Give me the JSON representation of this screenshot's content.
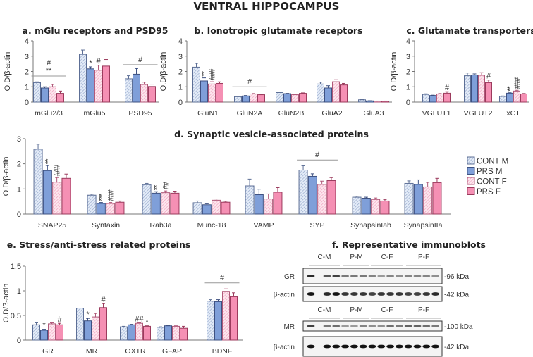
{
  "figure_title": "VENTRAL HIPPOCAMPUS",
  "legend": [
    "CONT M",
    "PRS M",
    "CONT F",
    "PRS F"
  ],
  "colors": {
    "cont_m_fill": "#e4ecf8",
    "cont_m_stripe": "#8fa3c8",
    "cont_m_border": "#5d6f96",
    "prs_m_fill": "#7f9fd9",
    "prs_m_border": "#3e5181",
    "cont_f_fill": "#fde6ee",
    "cont_f_stripe": "#ef9bba",
    "cont_f_border": "#b05a7a",
    "prs_f_fill": "#f590b4",
    "prs_f_border": "#9b3b5d",
    "axis": "#777777",
    "sig_line": "#999999"
  },
  "chart_data": [
    {
      "type": "bar",
      "title": "a. mGlu receptors and PSD95",
      "ylabel": "O.D/β-actin",
      "ylim": [
        0,
        4
      ],
      "yticks": [
        "0",
        "1",
        "2",
        "3",
        "4"
      ],
      "ytick_values": [
        0,
        1,
        2,
        3,
        4
      ],
      "categories": [
        "mGlu2/3",
        "mGlu5",
        "PSD95"
      ],
      "series": [
        {
          "name": "CONT M",
          "values": [
            1.27,
            3.12,
            1.52
          ],
          "errors": [
            0.05,
            0.28,
            0.2
          ]
        },
        {
          "name": "PRS M",
          "values": [
            0.92,
            2.17,
            1.82
          ],
          "errors": [
            0.08,
            0.13,
            0.37
          ]
        },
        {
          "name": "CONT F",
          "values": [
            1.0,
            2.08,
            1.15
          ],
          "errors": [
            0.15,
            0.33,
            0.15
          ]
        },
        {
          "name": "PRS F",
          "values": [
            0.57,
            2.35,
            1.02
          ],
          "errors": [
            0.15,
            0.43,
            0.15
          ]
        }
      ],
      "annotations": [
        {
          "category": 0,
          "line_at": 1.7,
          "text": "**",
          "text2": "#"
        },
        {
          "category": 1,
          "bar": 1,
          "text": "*"
        },
        {
          "category": 1,
          "bar": 2,
          "text": "#"
        },
        {
          "category": 2,
          "line_at": 2.44,
          "text": "#"
        }
      ]
    },
    {
      "type": "bar",
      "title": "b. Ionotropic glutamate receptors",
      "ylabel": "O.D/β-actin",
      "ylim": [
        0,
        4
      ],
      "yticks": [
        "0",
        "1",
        "2",
        "3",
        "4"
      ],
      "ytick_values": [
        0,
        1,
        2,
        3,
        4
      ],
      "categories": [
        "GluN1",
        "GluN2A",
        "GluN2B",
        "GluA2",
        "GluA3"
      ],
      "series": [
        {
          "name": "CONT M",
          "values": [
            2.28,
            0.35,
            0.62,
            1.18,
            0.15
          ],
          "errors": [
            0.25,
            0.03,
            0.02,
            0.12,
            0.02
          ]
        },
        {
          "name": "PRS M",
          "values": [
            1.38,
            0.4,
            0.55,
            0.92,
            0.08
          ],
          "errors": [
            0.2,
            0.03,
            0.02,
            0.15,
            0.01
          ]
        },
        {
          "name": "CONT F",
          "values": [
            1.18,
            0.53,
            0.48,
            1.33,
            0.06
          ],
          "errors": [
            0.15,
            0.03,
            0.02,
            0.13,
            0.01
          ]
        },
        {
          "name": "PRS F",
          "values": [
            1.22,
            0.48,
            0.57,
            1.12,
            0.06
          ],
          "errors": [
            0.1,
            0.03,
            0.03,
            0.1,
            0.01
          ]
        }
      ],
      "annotations": [
        {
          "category": 0,
          "bar": 1,
          "text": "**",
          "vertical": true
        },
        {
          "category": 0,
          "bar": 2,
          "text": "###",
          "vertical": true
        },
        {
          "category": 1,
          "line_at": 1.0,
          "text": "#"
        }
      ]
    },
    {
      "type": "bar",
      "title": "c. Glutamate transporters",
      "ylabel": "O.D/β-actin",
      "ylim": [
        0,
        4
      ],
      "yticks": [
        "0",
        "1",
        "2",
        "3",
        "4"
      ],
      "ytick_values": [
        0,
        1,
        2,
        3,
        4
      ],
      "categories": [
        "VGLUT1",
        "VGLUT2",
        "xCT"
      ],
      "series": [
        {
          "name": "CONT M",
          "values": [
            0.5,
            1.72,
            0.37
          ],
          "errors": [
            0.04,
            0.18,
            0.03
          ]
        },
        {
          "name": "PRS M",
          "values": [
            0.43,
            1.77,
            0.58
          ],
          "errors": [
            0.02,
            0.07,
            0.03
          ]
        },
        {
          "name": "CONT F",
          "values": [
            0.53,
            1.75,
            0.72
          ],
          "errors": [
            0.03,
            0.17,
            0.05
          ]
        },
        {
          "name": "PRS F",
          "values": [
            0.58,
            1.27,
            0.53
          ],
          "errors": [
            0.1,
            0.17,
            0.03
          ]
        }
      ],
      "annotations": [
        {
          "category": 0,
          "bar": 3,
          "text": "#"
        },
        {
          "category": 1,
          "bar": 3,
          "text": "#"
        },
        {
          "category": 2,
          "bar": 1,
          "text": "**",
          "vertical": true
        },
        {
          "category": 2,
          "bar": 2,
          "text": "###",
          "vertical": true
        }
      ]
    },
    {
      "type": "bar",
      "title": "d. Synaptic vesicle-associated proteins",
      "ylabel": "O.D/β-actin",
      "ylim": [
        0,
        3
      ],
      "yticks": [
        "0",
        "1",
        "2",
        "3"
      ],
      "ytick_values": [
        0,
        1,
        2,
        3
      ],
      "categories": [
        "SNAP25",
        "Syntaxin",
        "Rab3a",
        "Munc-18",
        "VAMP",
        "SYP",
        "SynapsinIab",
        "SynapsinIIa"
      ],
      "series": [
        {
          "name": "CONT M",
          "values": [
            2.58,
            0.75,
            1.17,
            0.45,
            1.12,
            1.75,
            0.67,
            1.22
          ],
          "errors": [
            0.2,
            0.04,
            0.05,
            0.07,
            0.27,
            0.17,
            0.04,
            0.1
          ]
        },
        {
          "name": "PRS M",
          "values": [
            1.73,
            0.42,
            0.83,
            0.37,
            0.77,
            1.5,
            0.63,
            1.18
          ],
          "errors": [
            0.2,
            0.04,
            0.06,
            0.04,
            0.22,
            0.1,
            0.04,
            0.18
          ]
        },
        {
          "name": "CONT F",
          "values": [
            1.27,
            0.42,
            0.85,
            0.55,
            0.6,
            1.18,
            0.58,
            1.08
          ],
          "errors": [
            0.18,
            0.04,
            0.07,
            0.05,
            0.2,
            0.13,
            0.06,
            0.18
          ]
        },
        {
          "name": "PRS F",
          "values": [
            1.42,
            0.47,
            0.83,
            0.47,
            0.87,
            1.33,
            0.52,
            1.25
          ],
          "errors": [
            0.17,
            0.05,
            0.08,
            0.04,
            0.18,
            0.12,
            0.06,
            0.17
          ]
        }
      ],
      "annotations": [
        {
          "category": 0,
          "bar": 1,
          "text": "**",
          "vertical": true
        },
        {
          "category": 0,
          "bar": 2,
          "text": "###",
          "vertical": true
        },
        {
          "category": 1,
          "bar": 1,
          "text": "***",
          "vertical": true
        },
        {
          "category": 1,
          "bar": 2,
          "text": "###",
          "vertical": true
        },
        {
          "category": 2,
          "bar": 1,
          "text": "**",
          "vertical": true
        },
        {
          "category": 2,
          "bar": 2,
          "text": "##",
          "vertical": true
        },
        {
          "category": 5,
          "line_at": 2.15,
          "text": "#"
        }
      ]
    },
    {
      "type": "bar",
      "title": "e. Stress/anti-stress related proteins",
      "ylabel": "O.D/β-actin",
      "ylim": [
        0,
        1.5
      ],
      "yticks": [
        "0",
        "0,5",
        "1",
        "1,5"
      ],
      "ytick_values": [
        0,
        0.5,
        1,
        1.5
      ],
      "categories": [
        "GR",
        "MR",
        "OXTR",
        "GFAP",
        "BDNF"
      ],
      "series": [
        {
          "name": "CONT M",
          "values": [
            0.31,
            0.65,
            0.27,
            0.26,
            0.79
          ],
          "errors": [
            0.04,
            0.1,
            0.01,
            0.01,
            0.03
          ]
        },
        {
          "name": "PRS M",
          "values": [
            0.2,
            0.39,
            0.31,
            0.29,
            0.78
          ],
          "errors": [
            0.02,
            0.05,
            0.01,
            0.01,
            0.04
          ]
        },
        {
          "name": "CONT F",
          "values": [
            0.33,
            0.47,
            0.34,
            0.28,
            0.99
          ],
          "errors": [
            0.02,
            0.07,
            0.01,
            0.01,
            0.05
          ]
        },
        {
          "name": "PRS F",
          "values": [
            0.31,
            0.66,
            0.28,
            0.24,
            0.88
          ],
          "errors": [
            0.03,
            0.08,
            0.01,
            0.04,
            0.08
          ]
        }
      ],
      "annotations": [
        {
          "category": 0,
          "bar": 1,
          "text": "*"
        },
        {
          "category": 0,
          "bar": 3,
          "text": "#"
        },
        {
          "category": 1,
          "bar": 1,
          "text": "*"
        },
        {
          "category": 1,
          "bar": 3,
          "text": "#"
        },
        {
          "category": 2,
          "bar": 2,
          "text": "##"
        },
        {
          "category": 2,
          "bar": 3,
          "text": "*"
        },
        {
          "category": 4,
          "line_at": 1.16,
          "text": "#"
        }
      ]
    }
  ],
  "blots": {
    "title": "f. Representative immunoblots",
    "groups": [
      "C-M",
      "P-M",
      "C-F",
      "P-F"
    ],
    "panels": [
      {
        "rows": [
          {
            "label": "GR",
            "kda": "-96 kDa"
          },
          {
            "label": "β-actin",
            "kda": "-42 kDa"
          }
        ]
      },
      {
        "rows": [
          {
            "label": "MR",
            "kda": "-100 kDa"
          },
          {
            "label": "β-actin",
            "kda": "-42 kDa"
          }
        ]
      }
    ]
  }
}
